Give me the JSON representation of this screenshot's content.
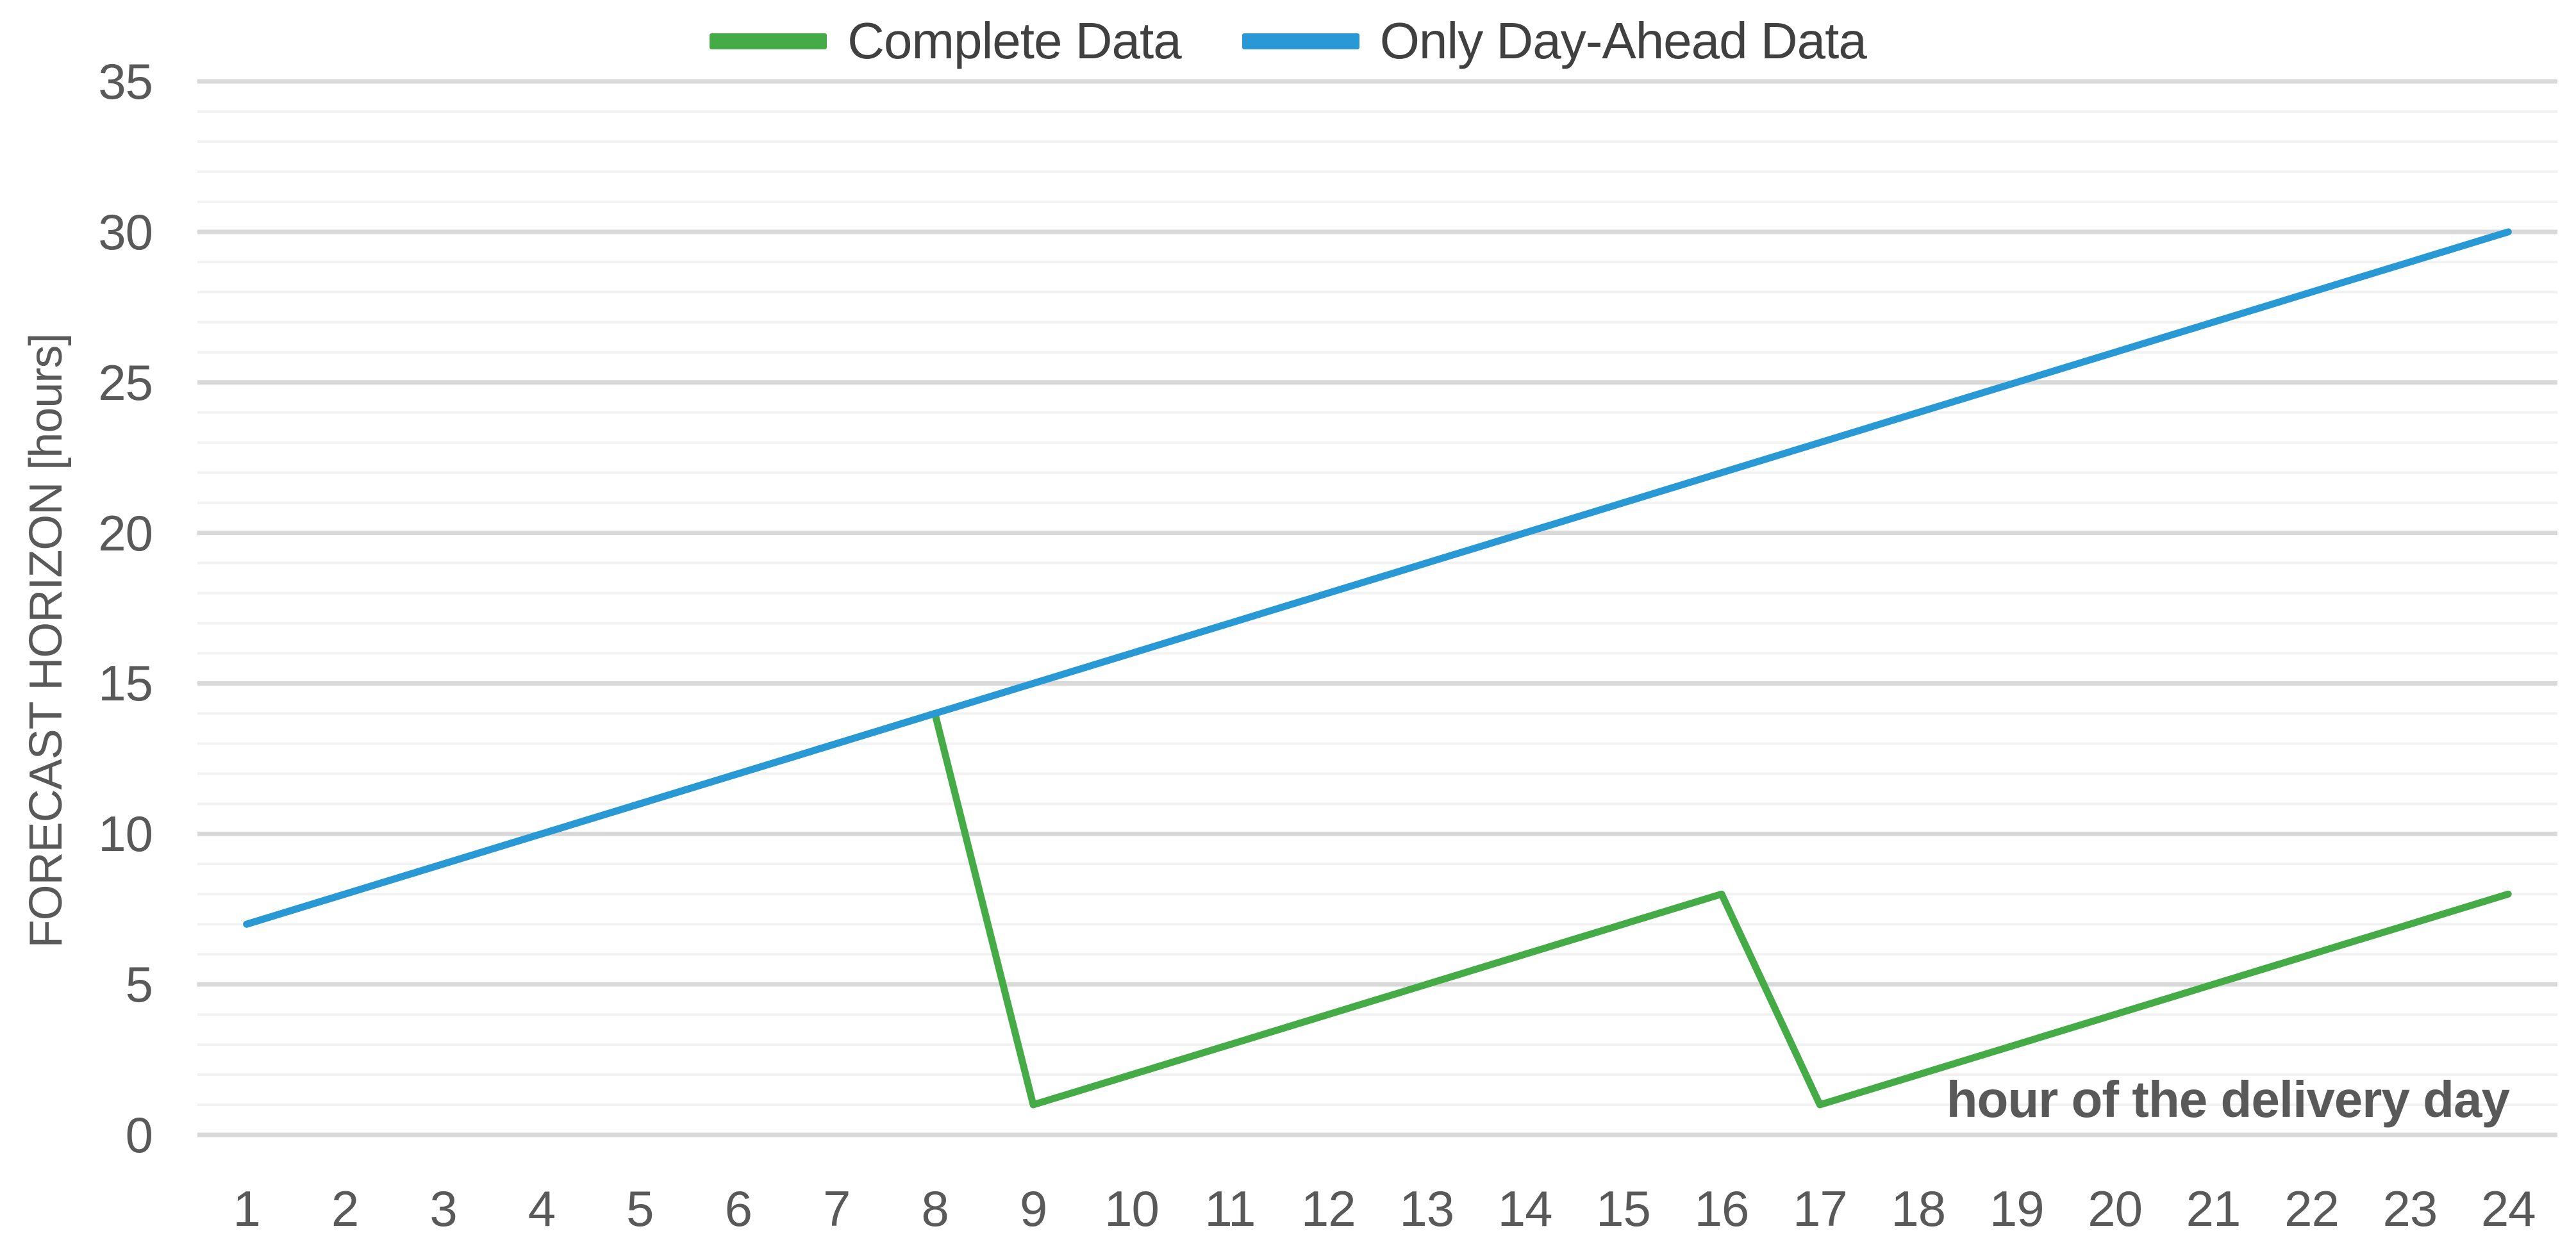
{
  "chart": {
    "legend": [
      {
        "label": "Complete Data",
        "color": "#45AB47"
      },
      {
        "label": "Only Day-Ahead Data",
        "color": "#2999D6"
      }
    ],
    "y_axis": {
      "title": "FORECAST HORIZON [hours]",
      "ticks": [
        0,
        5,
        10,
        15,
        20,
        25,
        30,
        35
      ]
    },
    "x_axis": {
      "labels": [
        "1",
        "2",
        "3",
        "4",
        "5",
        "6",
        "7",
        "8",
        "9",
        "10",
        "11",
        "12",
        "13",
        "14",
        "15",
        "16",
        "17",
        "18",
        "19",
        "20",
        "21",
        "22",
        "23",
        "24"
      ]
    },
    "annotation": "hour of the delivery day",
    "colors": {
      "tick_text": "#595959",
      "legend_text": "#404040",
      "minor_grid": "#F2F2F2",
      "major_grid": "#D9D9D9",
      "background": "#FFFFFF"
    }
  },
  "chart_data": {
    "type": "line",
    "title": "",
    "x": [
      1,
      2,
      3,
      4,
      5,
      6,
      7,
      8,
      9,
      10,
      11,
      12,
      13,
      14,
      15,
      16,
      17,
      18,
      19,
      20,
      21,
      22,
      23,
      24
    ],
    "series": [
      {
        "name": "Complete Data",
        "color": "#45AB47",
        "values": [
          7,
          8,
          9,
          10,
          11,
          12,
          13,
          14,
          1,
          2,
          3,
          4,
          5,
          6,
          7,
          8,
          1,
          2,
          3,
          4,
          5,
          6,
          7,
          8
        ]
      },
      {
        "name": "Only Day-Ahead Data",
        "color": "#2999D6",
        "values": [
          7,
          8,
          9,
          10,
          11,
          12,
          13,
          14,
          15,
          16,
          17,
          18,
          19,
          20,
          21,
          22,
          23,
          24,
          25,
          26,
          27,
          28,
          29,
          30
        ]
      }
    ],
    "xlabel": "hour of the delivery day",
    "ylabel": "FORECAST HORIZON [hours]",
    "ylim": [
      0,
      35
    ],
    "y_major_step": 5,
    "y_minor_step": 1,
    "grid": "minor-and-major-horizontal",
    "legend_position": "top-center"
  }
}
